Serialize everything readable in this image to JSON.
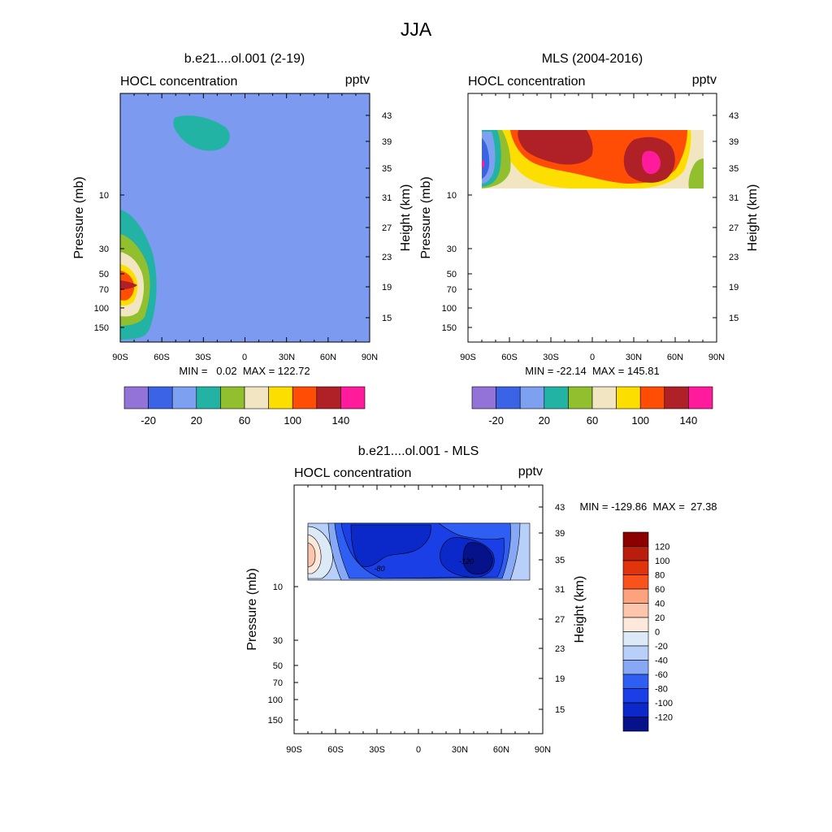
{
  "figure": {
    "title": "JJA",
    "colors": {
      "blue_bg": "#7b9af0",
      "teal": "#22b3a5",
      "green": "#92bf2e",
      "cream": "#f2e6c2",
      "yellow": "#fcdf00",
      "orange": "#ff4d06",
      "dark_red": "#b02127",
      "magenta": "#ff1b9c",
      "purple": "#9473d8",
      "royal_blue": "#3b63e6",
      "light_blue": "#7da1f0"
    }
  },
  "chart_data": [
    {
      "id": "model",
      "type": "heatmap",
      "title": "b.e21....ol.001 (2-19)",
      "left_label": "HOCL concentration",
      "right_label": "pptv",
      "xlabel": "",
      "ylabel": "Pressure (mb)",
      "right_axis_label": "Height (km)",
      "x_ticks": [
        "90S",
        "60S",
        "30S",
        "0",
        "30N",
        "60N",
        "90N"
      ],
      "y_ticks": [
        "10",
        "30",
        "50",
        "70",
        "100",
        "150"
      ],
      "height_ticks": [
        "43",
        "39",
        "35",
        "31",
        "27",
        "23",
        "19",
        "15"
      ],
      "stats": "MIN =   0.02  MAX = 122.72",
      "colorbar": {
        "colors": [
          "#9473d8",
          "#3b63e6",
          "#7da1f0",
          "#22b3a5",
          "#92bf2e",
          "#f2e6c2",
          "#fcdf00",
          "#ff4d06",
          "#b02127",
          "#ff1b9c"
        ],
        "labels": [
          "-20",
          "20",
          "60",
          "100",
          "140"
        ]
      }
    },
    {
      "id": "mls",
      "type": "heatmap",
      "title": "MLS (2004-2016)",
      "left_label": "HOCL concentration",
      "right_label": "pptv",
      "xlabel": "",
      "ylabel": "Pressure (mb)",
      "right_axis_label": "Height (km)",
      "x_ticks": [
        "90S",
        "60S",
        "30S",
        "0",
        "30N",
        "60N",
        "90N"
      ],
      "y_ticks": [
        "10",
        "30",
        "50",
        "70",
        "100",
        "150"
      ],
      "height_ticks": [
        "43",
        "39",
        "35",
        "31",
        "27",
        "23",
        "19",
        "15"
      ],
      "stats": "MIN = -22.14  MAX = 145.81",
      "colorbar": {
        "colors": [
          "#9473d8",
          "#3b63e6",
          "#7da1f0",
          "#22b3a5",
          "#92bf2e",
          "#f2e6c2",
          "#fcdf00",
          "#ff4d06",
          "#b02127",
          "#ff1b9c"
        ],
        "labels": [
          "-20",
          "20",
          "60",
          "100",
          "140"
        ]
      }
    },
    {
      "id": "diff",
      "type": "heatmap",
      "title": "b.e21....ol.001 - MLS",
      "left_label": "HOCL concentration",
      "right_label": "pptv",
      "xlabel": "",
      "ylabel": "Pressure (mb)",
      "right_axis_label": "Height (km)",
      "x_ticks": [
        "90S",
        "60S",
        "30S",
        "0",
        "30N",
        "60N",
        "90N"
      ],
      "y_ticks": [
        "10",
        "30",
        "50",
        "70",
        "100",
        "150"
      ],
      "height_ticks": [
        "43",
        "39",
        "35",
        "31",
        "27",
        "23",
        "19",
        "15"
      ],
      "stats": "MIN = -129.86  MAX =  27.38",
      "contour_labels": [
        "-80",
        "-120"
      ],
      "colorbar": {
        "colors": [
          "#8b0000",
          "#b81e0b",
          "#e1330c",
          "#f9531d",
          "#fca27f",
          "#fcc6ad",
          "#fde9dc",
          "#dce9f7",
          "#b8cff9",
          "#86a8f5",
          "#2f5ef3",
          "#1a3fe6",
          "#0b28c8",
          "#05128a"
        ],
        "labels": [
          "120",
          "100",
          "80",
          "60",
          "40",
          "20",
          "0",
          "-20",
          "-40",
          "-60",
          "-80",
          "-100",
          "-120"
        ]
      }
    }
  ]
}
